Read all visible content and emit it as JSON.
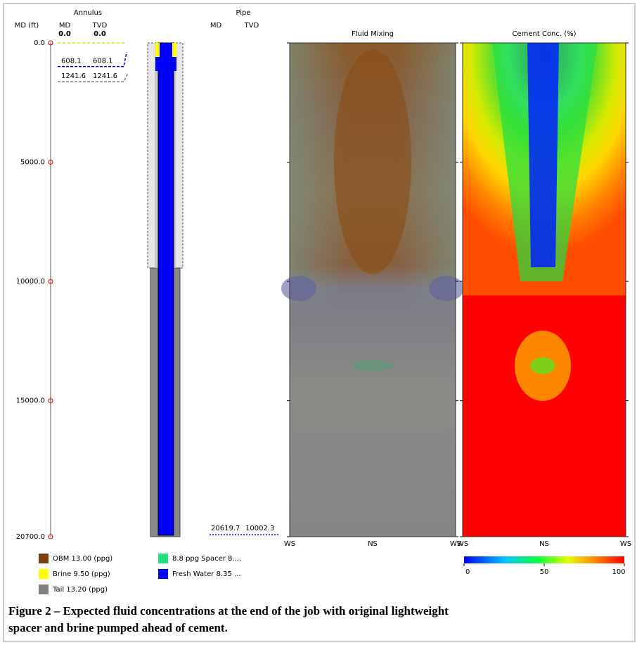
{
  "chart_data": {
    "type": "well-track",
    "annulus_header": {
      "title": "Annulus",
      "md_units": "MD (ft)",
      "md": "MD",
      "tvd": "TVD",
      "md_top": "0.0",
      "tvd_top": "0.0"
    },
    "pipe_header": {
      "title": "Pipe",
      "md": "MD",
      "tvd": "TVD"
    },
    "ylim": [
      0,
      20700
    ],
    "yticks": [
      {
        "value": 0,
        "label": "0.0"
      },
      {
        "value": 5000,
        "label": "5000.0"
      },
      {
        "value": 10000,
        "label": "10000.0"
      },
      {
        "value": 15000,
        "label": "15000.0"
      },
      {
        "value": 20700,
        "label": "20700.0"
      }
    ],
    "annulus_markers": [
      {
        "md": 608.1,
        "tvd": 608.1,
        "color": "#0000c8"
      },
      {
        "md": 1241.6,
        "tvd": 1241.6,
        "color": "#808080"
      }
    ],
    "pipe_bottom": {
      "md": 20619.7,
      "tvd": 10002.3
    },
    "panels": [
      {
        "title": "Fluid Mixing",
        "xticks": [
          "WS",
          "NS",
          "WS"
        ]
      },
      {
        "title": "Cement Conc. (%)",
        "xticks": [
          "WS",
          "NS",
          "WS"
        ]
      }
    ],
    "colorbar": {
      "clim": [
        0,
        100
      ],
      "ticks": [
        0,
        50,
        100
      ]
    },
    "legend": [
      {
        "name": "OBM 13.00 (ppg)",
        "color": "#7b3f10"
      },
      {
        "name": "Brine 9.50 (ppg)",
        "color": "#ffff00"
      },
      {
        "name": "Tail 13.20 (ppg)",
        "color": "#808080"
      },
      {
        "name": "8.8 ppg Spacer 8....",
        "color": "#20e080"
      },
      {
        "name": "Fresh Water 8.35 ...",
        "color": "#0000ff"
      }
    ],
    "caption": [
      "Figure 2 – Expected fluid concentrations at the end of the job with original lightweight",
      "spacer and brine pumped ahead of cement."
    ]
  }
}
